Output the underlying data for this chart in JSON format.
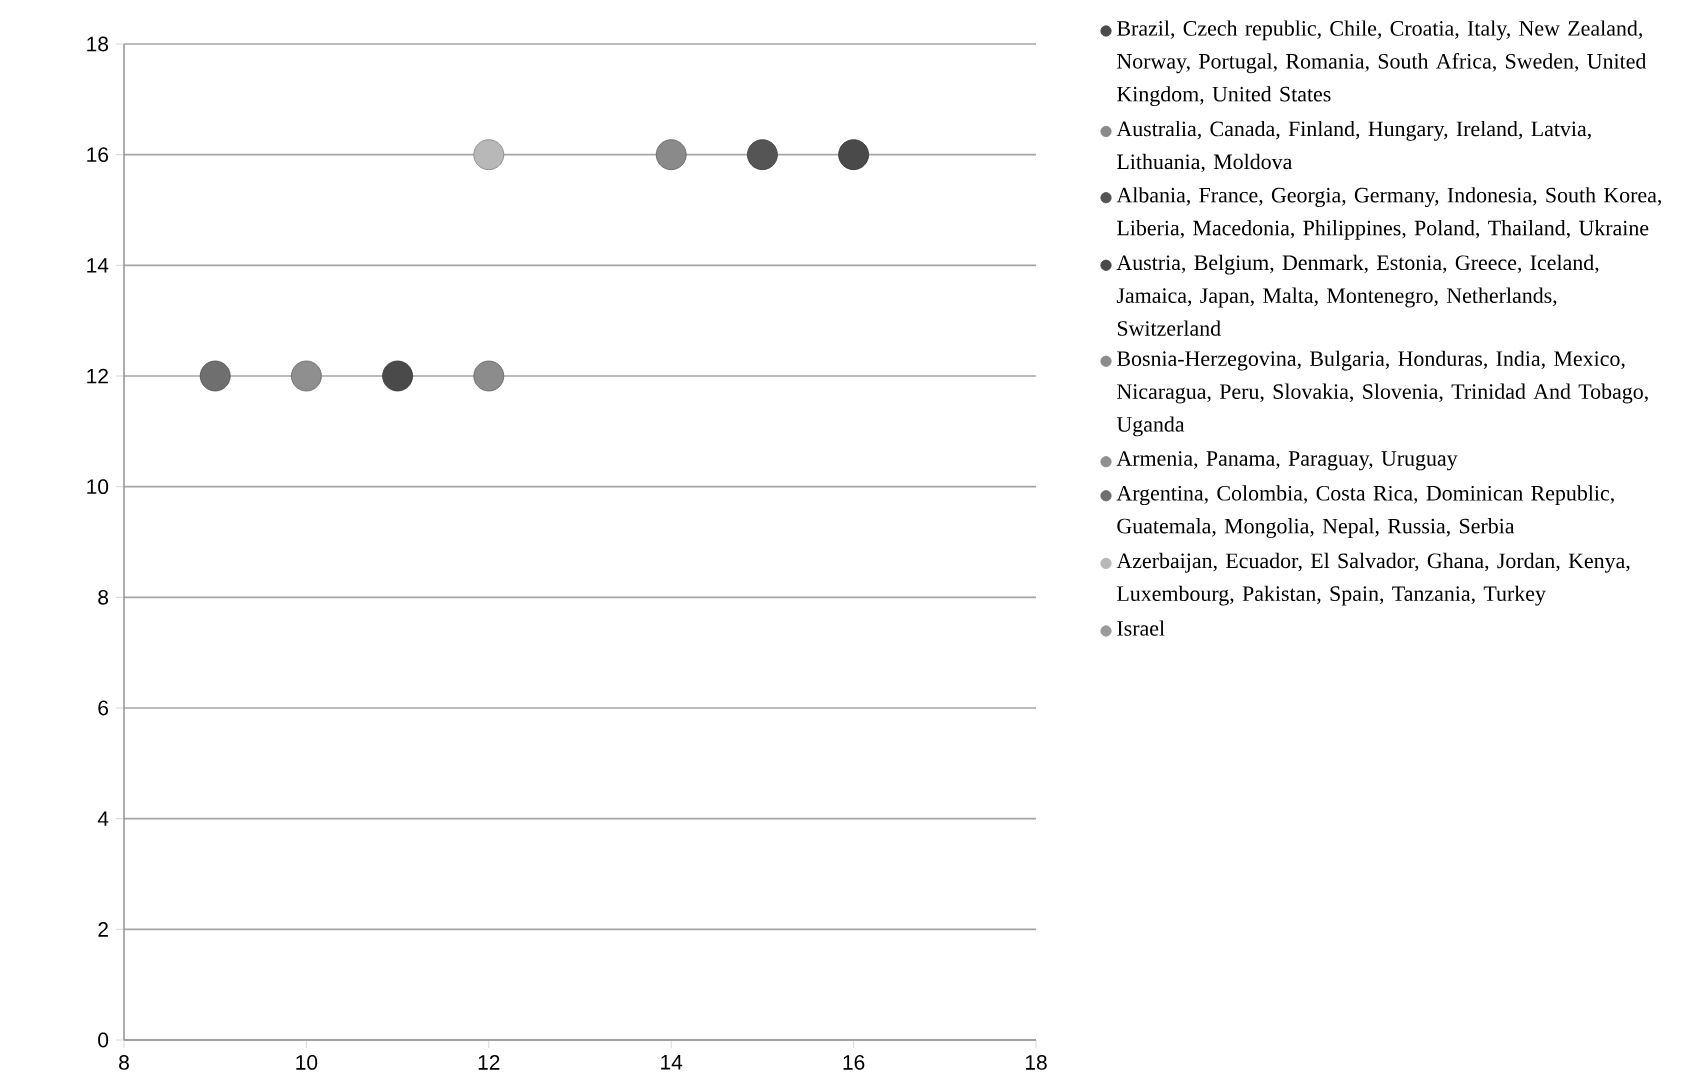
{
  "chart_data": {
    "type": "scatter",
    "xlim": [
      8,
      18
    ],
    "ylim": [
      0,
      18
    ],
    "xticks": [
      8,
      10,
      12,
      14,
      16,
      18
    ],
    "yticks": [
      0,
      2,
      4,
      6,
      8,
      10,
      12,
      14,
      16,
      18
    ],
    "grid": "y",
    "legend": "right",
    "marker": "circle",
    "series": [
      {
        "name": "Brazil, Czech republic, Chile, Croatia, Italy, New Zealand, Norway, Portugal, Romania, South Africa, Sweden, United Kingdom, United States",
        "color": "#4a4a4a",
        "x": [
          16
        ],
        "values": [
          16
        ]
      },
      {
        "name": "Australia, Canada, Finland, Hungary, Ireland, Latvia, Lithuania, Moldova",
        "color": "#8a8a8a",
        "x": [
          14
        ],
        "values": [
          16
        ]
      },
      {
        "name": "Albania, France, Georgia, Germany, Indonesia, South Korea, Liberia, Macedonia, Philippines, Poland, Thailand, Ukraine",
        "color": "#555555",
        "x": [
          15
        ],
        "values": [
          16
        ]
      },
      {
        "name": "Austria, Belgium, Denmark, Estonia, Greece, Iceland, Jamaica, Japan, Malta, Montenegro, Netherlands, Switzerland",
        "color": "#4a4a4a",
        "x": [
          11
        ],
        "values": [
          12
        ]
      },
      {
        "name": "Bosnia-Herzegovina, Bulgaria, Honduras, India, Mexico, Nicaragua, Peru, Slovakia, Slovenia, Trinidad And Tobago, Uganda",
        "color": "#8c8c8c",
        "x": [
          12
        ],
        "values": [
          12
        ]
      },
      {
        "name": "Armenia, Panama, Paraguay, Uruguay",
        "color": "#8f8f8f",
        "x": [
          10
        ],
        "values": [
          12
        ]
      },
      {
        "name": "Argentina, Colombia, Costa Rica, Dominican Republic, Guatemala, Mongolia, Nepal, Russia, Serbia",
        "color": "#6f6f6f",
        "x": [
          9
        ],
        "values": [
          12
        ]
      },
      {
        "name": "Azerbaijan, Ecuador, El Salvador, Ghana, Jordan, Kenya, Luxembourg, Pakistan, Spain, Tanzania, Turkey",
        "color": "#b8b8b8",
        "x": [
          12
        ],
        "values": [
          16
        ]
      },
      {
        "name": "Israel",
        "color": "#9a9a9a",
        "x": [
          null
        ],
        "values": [
          null
        ]
      }
    ]
  }
}
